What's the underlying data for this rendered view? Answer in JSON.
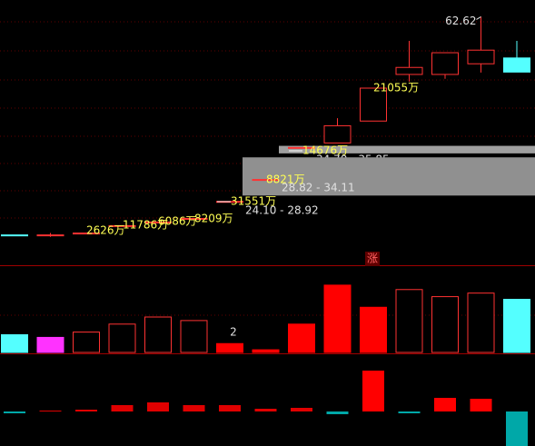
{
  "chart_data": [
    {
      "type": "candlestick",
      "scale": "log",
      "ylim": [
        22,
        66
      ],
      "up_color": "#ff3232",
      "down_color": "#54ffff",
      "candles": {
        "open": [
          24.4,
          24.4,
          24.5,
          25.4,
          25.8,
          26.1,
          28.2,
          31.0,
          35.5,
          36.3,
          39.9,
          48.8,
          48.8,
          51.1,
          52.4
        ],
        "high": [
          24.4,
          24.6,
          24.6,
          25.4,
          25.8,
          26.2,
          28.2,
          31.0,
          35.6,
          40.4,
          46.0,
          56.4,
          53.6,
          62.62,
          56.4
        ],
        "low": [
          24.3,
          24.2,
          24.5,
          25.4,
          25.8,
          26.1,
          28.2,
          31.0,
          35.5,
          36.3,
          39.9,
          47.3,
          47.9,
          49.2,
          49.3
        ],
        "close": [
          24.3,
          24.4,
          24.6,
          25.4,
          25.8,
          26.2,
          28.2,
          31.0,
          35.6,
          39.1,
          46.0,
          50.3,
          53.6,
          54.2,
          49.3
        ]
      },
      "gaps": [
        {
          "label": "34.70 - 35.85",
          "low": 34.7,
          "high": 35.85,
          "color": "#a0a0a0"
        },
        {
          "label": "28.82 - 34.11",
          "low": 28.82,
          "high": 34.11,
          "color": "#909090"
        },
        {
          "label": "24.10 - 28.92",
          "low": 24.1,
          "high": 28.92,
          "color": "#000000"
        }
      ],
      "annotations": [
        "2626万",
        "11786万",
        "6086万",
        "8209万",
        "31551万",
        "8821万",
        "14676万",
        "21055万"
      ]
    },
    {
      "type": "volume",
      "ylim": [
        0,
        80
      ],
      "values": [
        20,
        17,
        23,
        32,
        40,
        36,
        10,
        3,
        32,
        76,
        51,
        71,
        63,
        67,
        60
      ],
      "colors": [
        "#54ffff",
        "#ff32ff",
        "#ff3232",
        "#ff3232",
        "#ff3232",
        "#ff3232",
        "#ff0000",
        "#ff0000",
        "#ff0000",
        "#ff0000",
        "#ff0000",
        "#ff3232",
        "#ff3232",
        "#ff3232",
        "#54ffff"
      ],
      "hollow": [
        false,
        false,
        true,
        true,
        true,
        true,
        false,
        false,
        false,
        false,
        false,
        true,
        true,
        true,
        false
      ],
      "annotations": [
        "涨",
        "2"
      ]
    },
    {
      "type": "bar",
      "ylim": [
        -38,
        47
      ],
      "values": [
        -2,
        1,
        2,
        7,
        10,
        7,
        7,
        3,
        4,
        -3,
        45,
        -2,
        15,
        14,
        -38
      ],
      "colors": [
        "#00a8a8",
        "#e00000",
        "#e00000",
        "#e00000",
        "#e00000",
        "#e00000",
        "#e00000",
        "#e00000",
        "#e00000",
        "#00a8a8",
        "#ff0000",
        "#00a8a8",
        "#ff0000",
        "#ff0000",
        "#00a8a8"
      ]
    }
  ]
}
